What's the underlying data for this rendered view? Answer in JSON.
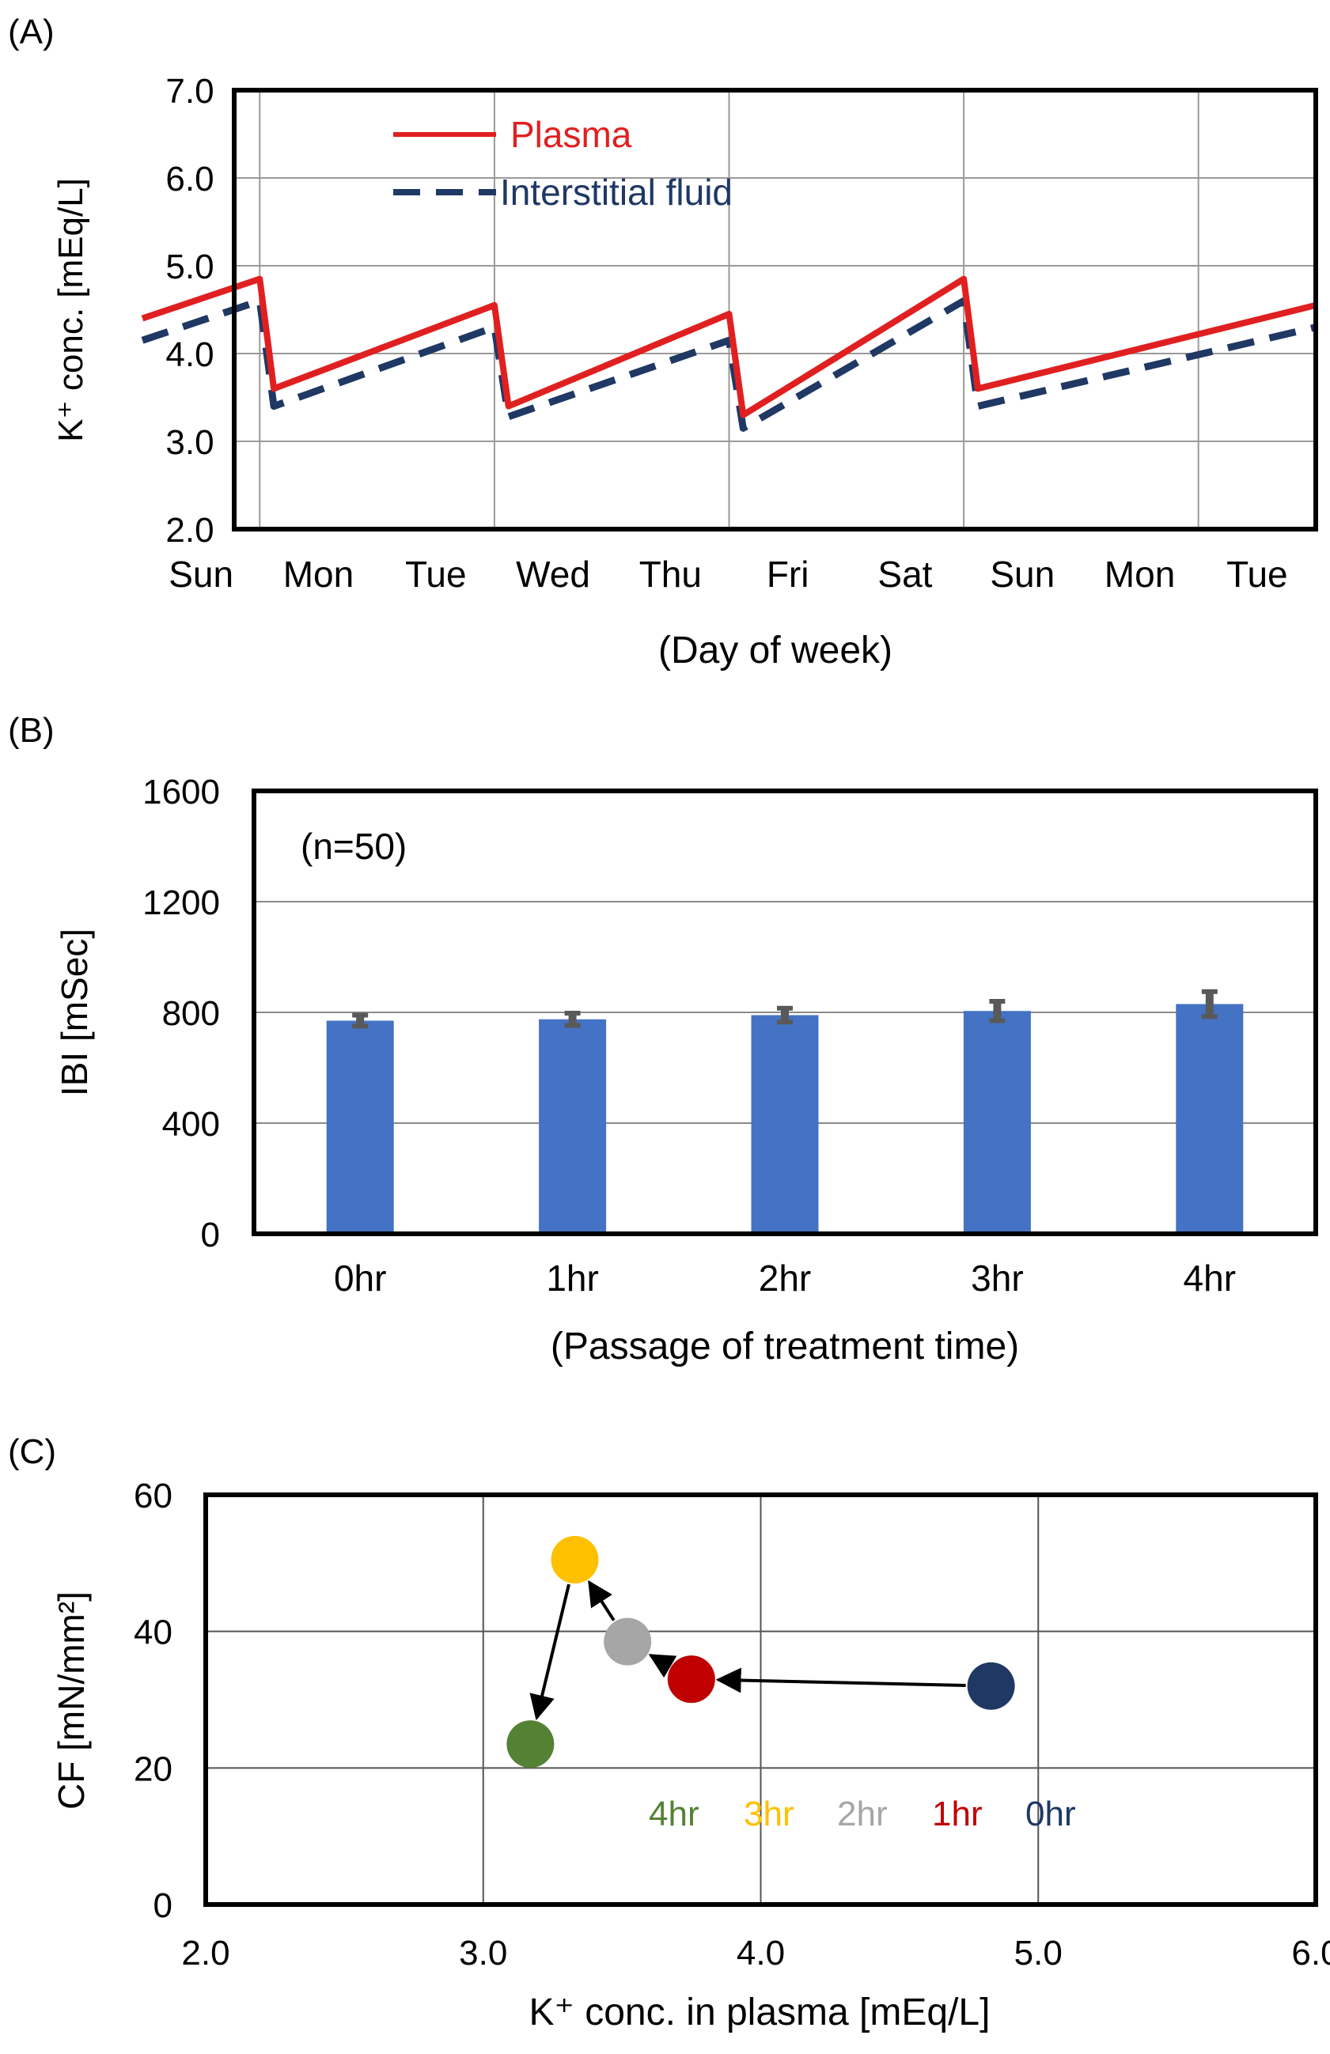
{
  "chart_data": [
    {
      "panel": "(A)",
      "type": "line",
      "ylabel": "K⁺ conc. [mEq/L]",
      "xlabel": "(Day of week)",
      "categories": [
        "Sun",
        "Mon",
        "Tue",
        "Wed",
        "Thu",
        "Fri",
        "Sat",
        "Sun",
        "Mon",
        "Tue"
      ],
      "ylim": [
        2.0,
        7.0
      ],
      "yticks": [
        "2.0",
        "3.0",
        "4.0",
        "5.0",
        "6.0",
        "7.0"
      ],
      "x_range": [
        0,
        10
      ],
      "grid": true,
      "legend": "top-left",
      "series": [
        {
          "name": "Plasma",
          "color": "#e02020",
          "dash": "solid",
          "points": [
            [
              0,
              4.4
            ],
            [
              1,
              4.85
            ],
            [
              1.12,
              3.6
            ],
            [
              3,
              4.55
            ],
            [
              3.12,
              3.4
            ],
            [
              5,
              4.45
            ],
            [
              5.12,
              3.3
            ],
            [
              7,
              4.85
            ],
            [
              7.12,
              3.6
            ],
            [
              10,
              4.55
            ]
          ]
        },
        {
          "name": "Interstitial fluid",
          "color": "#1f3864",
          "dash": "dashed",
          "points": [
            [
              0,
              4.15
            ],
            [
              1,
              4.6
            ],
            [
              1.12,
              3.4
            ],
            [
              3,
              4.3
            ],
            [
              3.12,
              3.28
            ],
            [
              5,
              4.15
            ],
            [
              5.12,
              3.15
            ],
            [
              7,
              4.6
            ],
            [
              7.12,
              3.4
            ],
            [
              10,
              4.3
            ]
          ]
        }
      ]
    },
    {
      "panel": "(B)",
      "type": "bar",
      "title": "(n=50)",
      "ylabel": "IBI [mSec]",
      "xlabel": "(Passage of treatment time)",
      "categories": [
        "0hr",
        "1hr",
        "2hr",
        "3hr",
        "4hr"
      ],
      "values": [
        770,
        775,
        790,
        805,
        830
      ],
      "errors": [
        20,
        22,
        25,
        35,
        45
      ],
      "ylim": [
        0,
        1600
      ],
      "yticks": [
        "0",
        "400",
        "800",
        "1200",
        "1600"
      ],
      "bar_color": "#4472c4",
      "error_color": "#595959",
      "grid": true
    },
    {
      "panel": "(C)",
      "type": "scatter",
      "ylabel": "CF [mN/mm²]",
      "xlabel": "K⁺ conc. in plasma [mEq/L]",
      "xlim": [
        2.0,
        6.0
      ],
      "ylim": [
        0,
        60
      ],
      "xticks": [
        "2.0",
        "3.0",
        "4.0",
        "5.0",
        "6.0"
      ],
      "yticks": [
        "0",
        "20",
        "40",
        "60"
      ],
      "grid": true,
      "points": [
        {
          "label": "0hr",
          "x": 4.83,
          "y": 32,
          "color": "#1f3864"
        },
        {
          "label": "1hr",
          "x": 3.75,
          "y": 33,
          "color": "#c00000"
        },
        {
          "label": "2hr",
          "x": 3.52,
          "y": 38.5,
          "color": "#a6a6a6"
        },
        {
          "label": "3hr",
          "x": 3.33,
          "y": 50.5,
          "color": "#ffc000"
        },
        {
          "label": "4hr",
          "x": 3.17,
          "y": 23.5,
          "color": "#548235"
        }
      ],
      "arrows": [
        [
          "0hr",
          "1hr"
        ],
        [
          "1hr",
          "2hr"
        ],
        [
          "2hr",
          "3hr"
        ],
        [
          "3hr",
          "4hr"
        ]
      ],
      "legend": "bottom-right",
      "legend_order": [
        "4hr",
        "3hr",
        "2hr",
        "1hr",
        "0hr"
      ]
    }
  ]
}
